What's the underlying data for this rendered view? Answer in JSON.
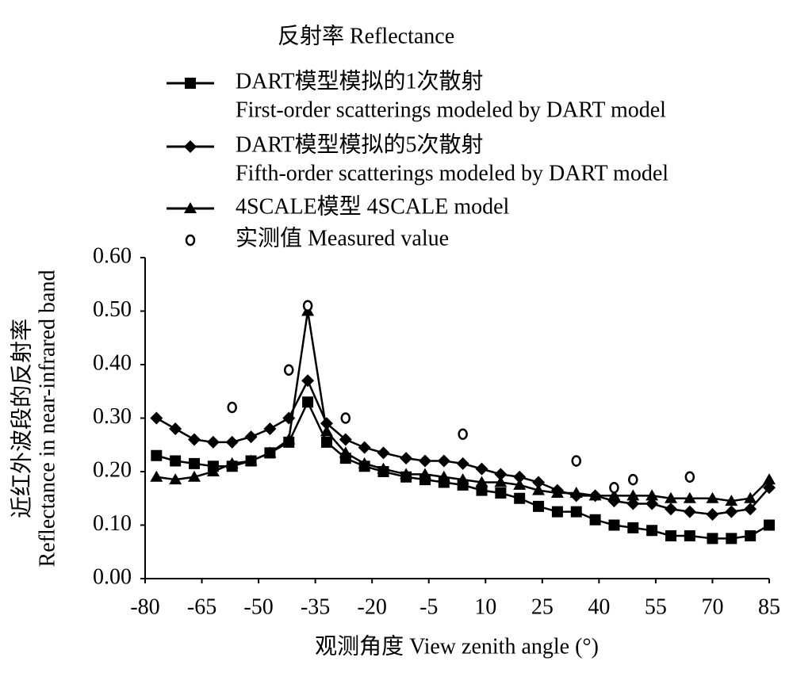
{
  "chart_data": {
    "type": "line",
    "title": "反射率 Reflectance",
    "xlabel": "观测角度 View zenith angle (°)",
    "ylabel": [
      "近红外波段的反射率",
      "Reflectance in near-infrared band"
    ],
    "xlim": [
      -80,
      85
    ],
    "xticks": [
      -80,
      -65,
      -50,
      -35,
      -20,
      -5,
      10,
      25,
      40,
      55,
      70,
      85
    ],
    "ylim": [
      0,
      0.6
    ],
    "yticks": [
      {
        "value": 0,
        "label": "0.00"
      },
      {
        "value": 0.1,
        "label": "0.10"
      },
      {
        "value": 0.2,
        "label": "0.20"
      },
      {
        "value": 0.3,
        "label": "0.30"
      },
      {
        "value": 0.4,
        "label": "0.40"
      },
      {
        "value": 0.5,
        "label": "0.50"
      },
      {
        "value": 0.6,
        "label": "0.60"
      }
    ],
    "grid": false,
    "series": [
      {
        "name": [
          "DART模型模拟的1次散射",
          "First-order scatterings modeled by DART model"
        ],
        "color": "#000000",
        "marker": "square",
        "line": true,
        "x": [
          -77,
          -72,
          -67,
          -62,
          -57,
          -52,
          -47,
          -42,
          -37,
          -32,
          -27,
          -22,
          -17,
          -11,
          -6,
          -1,
          4,
          9,
          14,
          19,
          24,
          29,
          34,
          39,
          44,
          49,
          54,
          59,
          64,
          70,
          75,
          80,
          85
        ],
        "values": [
          0.23,
          0.22,
          0.215,
          0.21,
          0.21,
          0.22,
          0.235,
          0.255,
          0.33,
          0.255,
          0.225,
          0.21,
          0.2,
          0.19,
          0.185,
          0.18,
          0.175,
          0.165,
          0.16,
          0.15,
          0.135,
          0.125,
          0.125,
          0.11,
          0.1,
          0.095,
          0.09,
          0.08,
          0.08,
          0.075,
          0.075,
          0.08,
          0.1
        ]
      },
      {
        "name": [
          "DART模型模拟的5次散射",
          "Fifth-order scatterings modeled by DART model"
        ],
        "color": "#000000",
        "marker": "diamond",
        "line": true,
        "x": [
          -77,
          -72,
          -67,
          -62,
          -57,
          -52,
          -47,
          -42,
          -37,
          -32,
          -27,
          -22,
          -17,
          -11,
          -6,
          -1,
          4,
          9,
          14,
          19,
          24,
          29,
          34,
          39,
          44,
          49,
          54,
          59,
          64,
          70,
          75,
          80,
          85
        ],
        "values": [
          0.3,
          0.28,
          0.26,
          0.255,
          0.255,
          0.265,
          0.28,
          0.3,
          0.37,
          0.29,
          0.26,
          0.245,
          0.235,
          0.225,
          0.22,
          0.22,
          0.215,
          0.205,
          0.195,
          0.19,
          0.18,
          0.165,
          0.155,
          0.155,
          0.145,
          0.14,
          0.14,
          0.13,
          0.125,
          0.12,
          0.125,
          0.13,
          0.17
        ]
      },
      {
        "name": [
          "4SCALE模型 4SCALE model"
        ],
        "color": "#000000",
        "marker": "triangle",
        "line": true,
        "x": [
          -77,
          -72,
          -67,
          -62,
          -57,
          -52,
          -47,
          -42,
          -37,
          -32,
          -27,
          -22,
          -17,
          -11,
          -6,
          -1,
          4,
          9,
          14,
          19,
          24,
          29,
          34,
          39,
          44,
          49,
          54,
          59,
          64,
          70,
          75,
          80,
          85
        ],
        "values": [
          0.19,
          0.185,
          0.19,
          0.2,
          0.215,
          0.22,
          0.235,
          0.26,
          0.5,
          0.275,
          0.235,
          0.215,
          0.205,
          0.195,
          0.195,
          0.19,
          0.185,
          0.18,
          0.18,
          0.175,
          0.165,
          0.16,
          0.16,
          0.155,
          0.155,
          0.155,
          0.155,
          0.15,
          0.15,
          0.15,
          0.145,
          0.15,
          0.185
        ]
      },
      {
        "name": [
          "实测值 Measured value"
        ],
        "color": "#000000",
        "marker": "circle",
        "line": false,
        "x": [
          -57,
          -42,
          -37,
          -27,
          4,
          34,
          44,
          49,
          64
        ],
        "values": [
          0.32,
          0.39,
          0.51,
          0.3,
          0.27,
          0.22,
          0.17,
          0.185,
          0.19
        ]
      }
    ]
  }
}
